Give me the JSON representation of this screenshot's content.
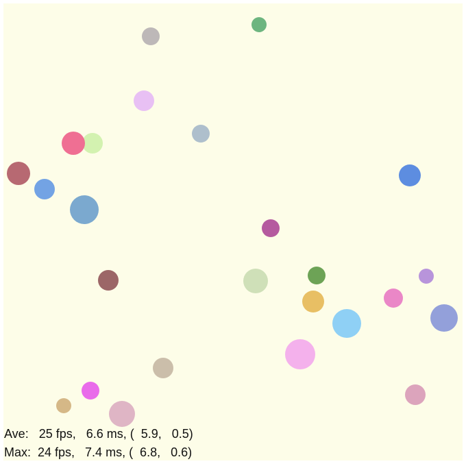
{
  "stats": {
    "lines": [
      "Ave:   25 fps,   6.6 ms, (  5.9,   0.5)",
      "Max:  24 fps,   7.4 ms, (  6.8,   0.6)"
    ]
  }
}
